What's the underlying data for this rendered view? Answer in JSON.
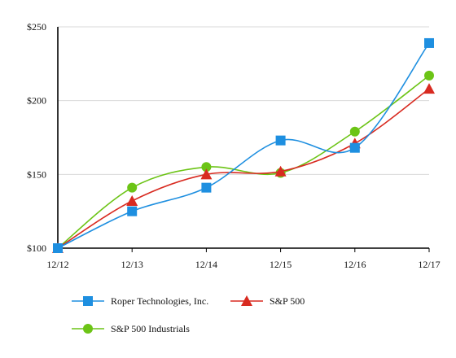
{
  "chart_data": {
    "type": "line",
    "categories": [
      "12/12",
      "12/13",
      "12/14",
      "12/15",
      "12/16",
      "12/17"
    ],
    "ylim": [
      100,
      250
    ],
    "yticks": [
      100,
      150,
      200,
      250
    ],
    "ytick_labels": [
      "$100",
      "$150",
      "$200",
      "$250"
    ],
    "grid": "horizontal",
    "legend_position": "bottom",
    "series": [
      {
        "name": "Roper Technologies, Inc.",
        "marker": "square",
        "color": "#1e8fe0",
        "values": [
          100,
          125,
          141,
          173,
          168,
          239
        ]
      },
      {
        "name": "S&P 500",
        "marker": "triangle",
        "color": "#d82a20",
        "values": [
          100,
          132,
          150,
          152,
          171,
          208
        ]
      },
      {
        "name": "S&P 500 Industrials",
        "marker": "circle",
        "color": "#6cc416",
        "values": [
          100,
          141,
          155,
          151,
          179,
          217
        ]
      }
    ]
  }
}
